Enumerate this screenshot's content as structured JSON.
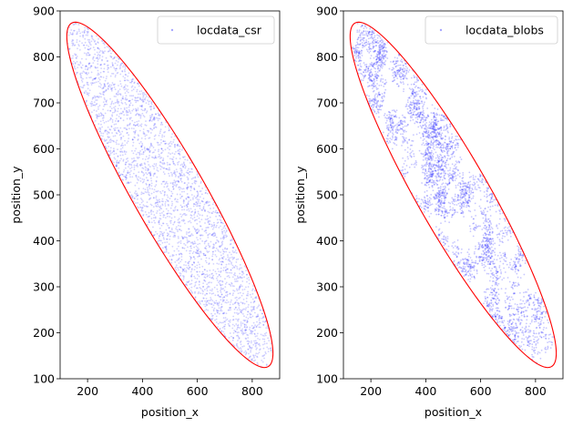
{
  "chart_data": [
    {
      "type": "scatter",
      "panel": "left",
      "xlabel": "position_x",
      "ylabel": "position_y",
      "xlim": [
        100,
        900
      ],
      "ylim": [
        100,
        900
      ],
      "xticks": [
        200,
        400,
        600,
        800
      ],
      "yticks": [
        100,
        200,
        300,
        400,
        500,
        600,
        700,
        800,
        900
      ],
      "grid": false,
      "legend_placement": "top-right",
      "series": [
        {
          "name": "locdata_csr",
          "color": "#0000ff",
          "alpha": 0.18,
          "distribution": "uniform",
          "points": 3000,
          "x": [
            210,
            320,
            450,
            580,
            700,
            800,
            260,
            390,
            520,
            650,
            760,
            170
          ],
          "y": [
            800,
            700,
            560,
            430,
            320,
            200,
            760,
            620,
            480,
            360,
            260,
            820
          ]
        }
      ],
      "region": {
        "shape": "ellipse",
        "color": "#ff0000",
        "center": [
          500,
          500
        ],
        "semi_major": 520,
        "semi_minor": 108,
        "angle_deg": -45
      }
    },
    {
      "type": "scatter",
      "panel": "right",
      "xlabel": "position_x",
      "ylabel": "position_y",
      "xlim": [
        100,
        900
      ],
      "ylim": [
        100,
        900
      ],
      "xticks": [
        200,
        400,
        600,
        800
      ],
      "yticks": [
        100,
        200,
        300,
        400,
        500,
        600,
        700,
        800,
        900
      ],
      "grid": false,
      "legend_placement": "top-right",
      "series": [
        {
          "name": "locdata_blobs",
          "color": "#0000ff",
          "alpha": 0.22,
          "distribution": "clustered",
          "clusters": 170,
          "points_per_cluster": 22,
          "cluster_radius": 11,
          "x": [
            220,
            300,
            450,
            520,
            640,
            760,
            180,
            410,
            690,
            800
          ],
          "y": [
            780,
            660,
            560,
            400,
            350,
            230,
            820,
            470,
            310,
            160
          ]
        }
      ],
      "region": {
        "shape": "ellipse",
        "color": "#ff0000",
        "center": [
          500,
          500
        ],
        "semi_major": 520,
        "semi_minor": 108,
        "angle_deg": -45
      }
    }
  ]
}
